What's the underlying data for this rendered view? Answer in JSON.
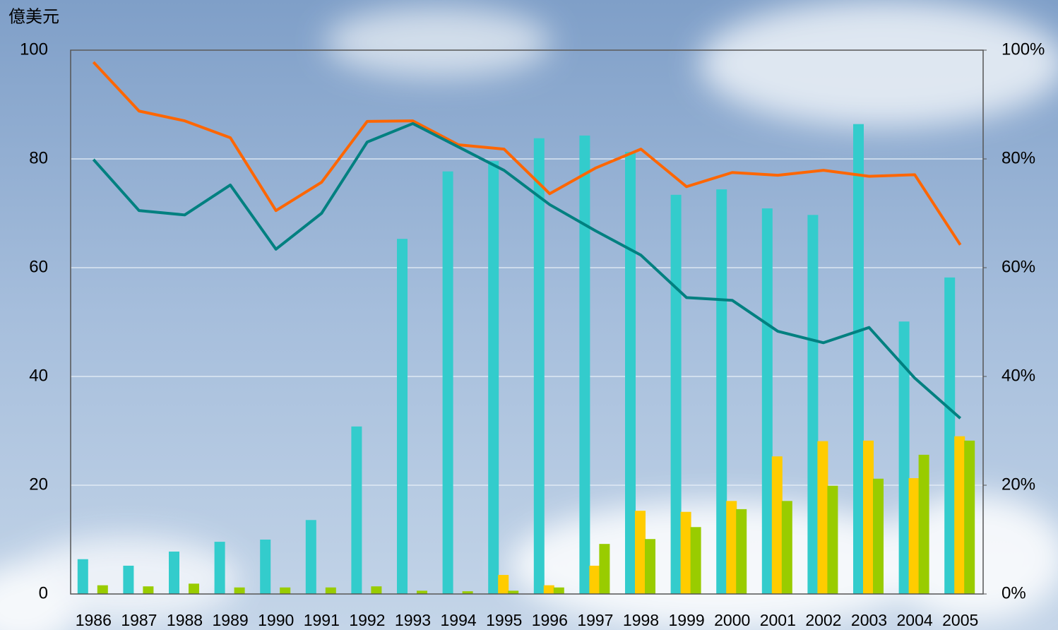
{
  "chart_data": {
    "type": "bar-line",
    "y_label": "億美元",
    "categories": [
      "1986",
      "1987",
      "1988",
      "1989",
      "1990",
      "1991",
      "1992",
      "1993",
      "1994",
      "1995",
      "1996",
      "1997",
      "1998",
      "1999",
      "2000",
      "2001",
      "2002",
      "2003",
      "2004",
      "2005"
    ],
    "series": [
      {
        "type": "bar",
        "color": "#33cccc",
        "values": [
          6.4,
          5.2,
          7.8,
          9.6,
          10.0,
          13.6,
          30.8,
          65.3,
          77.7,
          79.6,
          83.8,
          84.3,
          81.3,
          73.4,
          74.4,
          70.9,
          69.7,
          86.4,
          50.1,
          58.2
        ]
      },
      {
        "type": "bar",
        "color": "#ffcc00",
        "values": [
          0,
          0,
          0,
          0,
          0,
          0,
          0,
          0,
          0,
          3.5,
          1.6,
          5.2,
          15.3,
          15.1,
          17.1,
          25.3,
          28.1,
          28.2,
          21.3,
          29.0
        ]
      },
      {
        "type": "bar",
        "color": "#99cc00",
        "values": [
          1.6,
          1.4,
          1.9,
          1.2,
          1.2,
          1.2,
          1.4,
          0.6,
          0.5,
          0.6,
          1.2,
          9.2,
          10.1,
          12.3,
          15.6,
          17.1,
          19.9,
          21.2,
          25.6,
          28.2
        ]
      },
      {
        "type": "line",
        "axis": "y2",
        "color": "#ff6600",
        "values": [
          97.8,
          88.8,
          87.0,
          83.9,
          70.5,
          75.7,
          86.9,
          87.0,
          82.6,
          81.8,
          73.6,
          78.3,
          81.8,
          74.9,
          77.5,
          77.0,
          77.9,
          76.8,
          77.1,
          64.2
        ]
      },
      {
        "type": "line",
        "axis": "y2",
        "color": "#008080",
        "values": [
          79.9,
          70.5,
          69.7,
          75.2,
          63.4,
          70.0,
          83.1,
          86.5,
          82.2,
          77.9,
          71.6,
          66.8,
          62.3,
          54.5,
          54.0,
          48.3,
          46.2,
          49.0,
          39.7,
          32.3
        ]
      }
    ],
    "ylim": [
      0,
      100
    ],
    "yticks": [
      0,
      20,
      40,
      60,
      80,
      100
    ],
    "y2lim": [
      0,
      100
    ],
    "y2ticks": [
      {
        "value": 0,
        "label": "0%"
      },
      {
        "value": 20,
        "label": "20%"
      },
      {
        "value": 40,
        "label": "40%"
      },
      {
        "value": 60,
        "label": "60%"
      },
      {
        "value": 80,
        "label": "80%"
      },
      {
        "value": 100,
        "label": "100%"
      }
    ],
    "grid": true
  }
}
